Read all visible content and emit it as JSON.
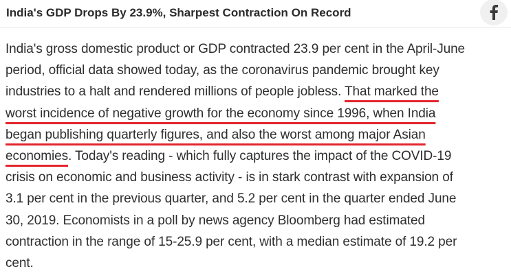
{
  "header": {
    "headline": "India's GDP Drops By 23.9%, Sharpest Contraction On Record",
    "share_icon": "facebook-icon",
    "share_icon_color": "#3b3b3b",
    "share_button_bg": "#f0f0f0"
  },
  "article": {
    "underline_color": "#e3242b",
    "lines": [
      {
        "text": "India's gross domestic product or GDP contracted 23.9 per cent in the April-June"
      },
      {
        "text": "period, official data showed today, as the coronavirus pandemic brought key"
      },
      {
        "text": "industries to a halt and rendered millions of people jobless. ",
        "highlight": "That marked the"
      },
      {
        "highlight": "worst incidence of negative growth for the economy since 1996, when India"
      },
      {
        "highlight": "began publishing quarterly figures, and also the worst among major Asian"
      },
      {
        "highlight": "economies",
        "text_after": ". Today's reading - which fully captures the impact of the COVID-19"
      },
      {
        "text": "crisis on economic and business activity - is in stark contrast with expansion of"
      },
      {
        "text": "3.1 per cent in the previous quarter, and 5.2 per cent in the quarter ended June"
      },
      {
        "text": "30, 2019. Economists in a poll by news agency Bloomberg had estimated"
      },
      {
        "text": "contraction in the range of 15-25.9 per cent, with a median estimate of 19.2 per"
      },
      {
        "text": "cent."
      }
    ]
  }
}
